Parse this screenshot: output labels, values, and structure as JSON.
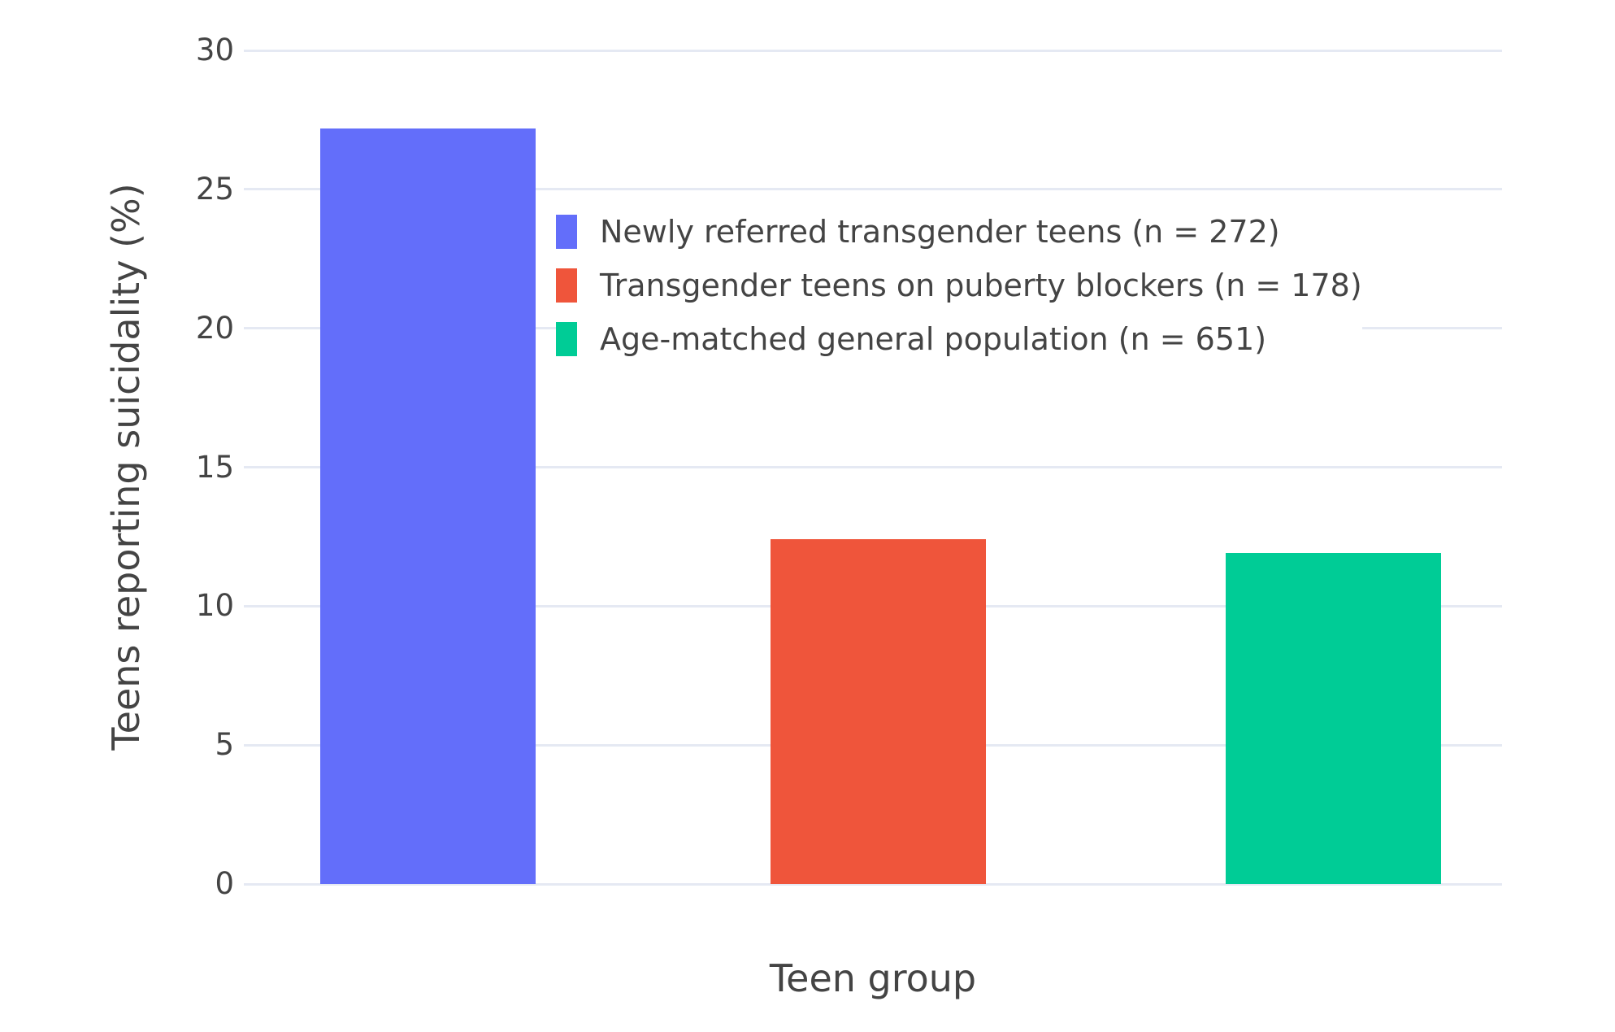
{
  "chart_data": {
    "type": "bar",
    "title": "",
    "xlabel": "Teen group",
    "ylabel": "Teens reporting suicidality (%)",
    "ylim": [
      0,
      30
    ],
    "yticks": [
      0,
      5,
      10,
      15,
      20,
      25,
      30
    ],
    "grid": true,
    "legend_position": "inside top-center",
    "categories": [
      "Newly referred transgender teens",
      "Transgender teens on puberty blockers",
      "Age-matched general population"
    ],
    "series": [
      {
        "name": "Newly referred transgender teens (n = 272)",
        "value": 27.2,
        "color": "#636EFA"
      },
      {
        "name": "Transgender teens on puberty blockers (n = 178)",
        "value": 12.4,
        "color": "#EF553B"
      },
      {
        "name": "Age-matched general population (n = 651)",
        "value": 11.9,
        "color": "#00CC96"
      }
    ],
    "colors": {
      "grid": "#E5E9F3",
      "text": "#444444",
      "background": "#FFFFFF"
    }
  }
}
